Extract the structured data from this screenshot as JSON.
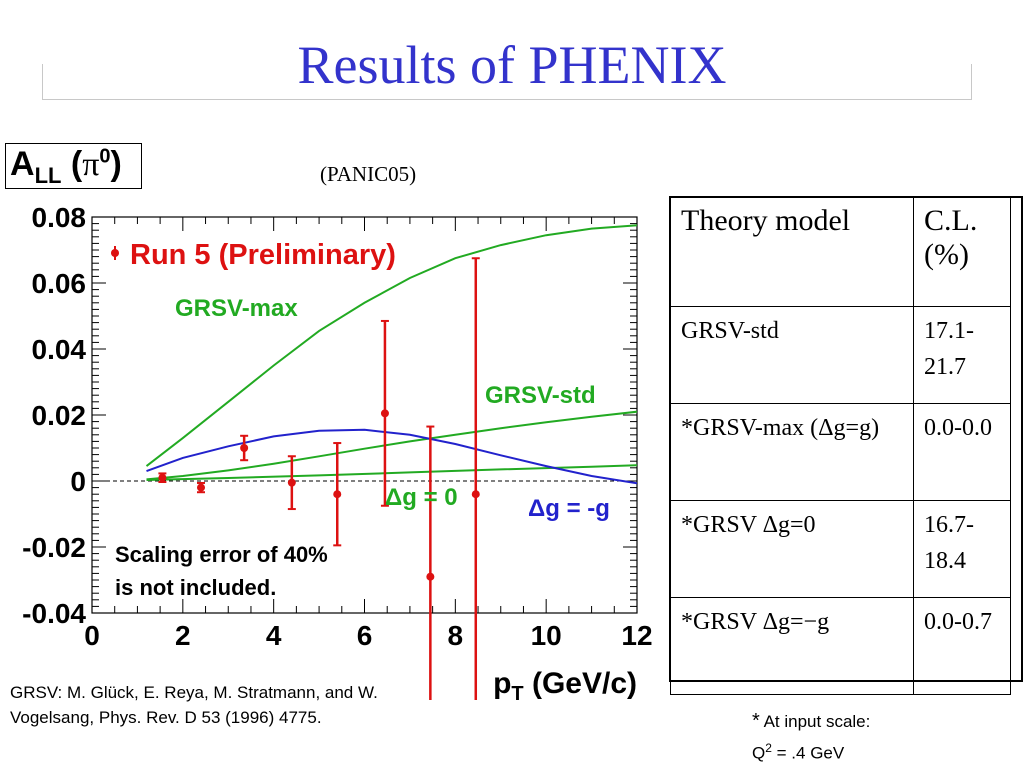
{
  "slide": {
    "title": "Results of PHENIX",
    "source": "(PANIC05)",
    "all_label": {
      "main": "A",
      "sub": "LL",
      "paren_open": " (",
      "pi": "π",
      "sup": "0",
      "paren_close": ")"
    },
    "reference": "GRSV:  M. Glück, E. Reya, M. Stratmann, and W. Vogelsang, Phys. Rev. D 53 (1996) 4775.",
    "footnote": {
      "star": "*",
      "line1": " At input scale:",
      "q": "Q",
      "q_sup": "2",
      "line2": " = .4 GeV"
    }
  },
  "table": {
    "headers": [
      "Theory model",
      "C.L. (%)"
    ],
    "rows": [
      {
        "model": "GRSV-std",
        "cl": "17.1-21.7"
      },
      {
        "model": "*GRSV-max (Δg=g)",
        "cl": "0.0-0.0"
      },
      {
        "model": "*GRSV Δg=0",
        "cl": "16.7-18.4"
      },
      {
        "model": "*GRSV Δg=−g",
        "cl": "0.0-0.7"
      }
    ]
  },
  "chart_data": {
    "type": "scatter",
    "xlabel": "p",
    "xlabel_sub": "T",
    "xlabel_unit": " (GeV/c)",
    "xlim": [
      0,
      12
    ],
    "ylim": [
      -0.04,
      0.08
    ],
    "x_ticks": [
      "0",
      "2",
      "4",
      "6",
      "8",
      "10",
      "12"
    ],
    "y_ticks": [
      "-0.04",
      "-0.02",
      "0",
      "0.02",
      "0.04",
      "0.06",
      "0.08"
    ],
    "x_tick_values": [
      0,
      2,
      4,
      6,
      8,
      10,
      12
    ],
    "y_tick_values": [
      -0.04,
      -0.02,
      0,
      0.02,
      0.04,
      0.06,
      0.08
    ],
    "legend": "Run 5 (Preliminary)",
    "annotations": {
      "grsv_max": "GRSV-max",
      "grsv_std": "GRSV-std",
      "dg0": "Δg = 0",
      "dgneg": "Δg = -g",
      "note_line1": "Scaling error of 40%",
      "note_line2": "is not included."
    },
    "colors": {
      "data": "#dd1111",
      "green": "#22aa22",
      "blue": "#2222cc",
      "axis": "#000000"
    },
    "points": [
      {
        "x": 1.55,
        "y": 0.001,
        "err": 0.0013
      },
      {
        "x": 2.4,
        "y": -0.002,
        "err": 0.0014
      },
      {
        "x": 3.35,
        "y": 0.01,
        "err": 0.0037
      },
      {
        "x": 4.4,
        "y": -0.0005,
        "err": 0.008
      },
      {
        "x": 5.4,
        "y": -0.004,
        "err": 0.0155
      },
      {
        "x": 6.45,
        "y": 0.0205,
        "err": 0.028
      },
      {
        "x": 7.45,
        "y": -0.029,
        "err": 0.0455
      },
      {
        "x": 8.45,
        "y": -0.004,
        "err": 0.0715
      }
    ],
    "curves": [
      {
        "name": "GRSV-max",
        "color": "green",
        "x": [
          1.2,
          2,
          3,
          4,
          5,
          6,
          7,
          8,
          9,
          10,
          11,
          12
        ],
        "y": [
          0.0045,
          0.013,
          0.024,
          0.035,
          0.0455,
          0.054,
          0.0615,
          0.0675,
          0.0715,
          0.0745,
          0.0765,
          0.0775
        ]
      },
      {
        "name": "GRSV-std",
        "color": "green",
        "x": [
          1.2,
          2,
          3,
          4,
          5,
          6,
          7,
          8,
          9,
          10,
          11,
          12
        ],
        "y": [
          0.0005,
          0.0015,
          0.0032,
          0.0052,
          0.0075,
          0.0098,
          0.012,
          0.014,
          0.016,
          0.0178,
          0.0195,
          0.021
        ]
      },
      {
        "name": "Δg = 0",
        "color": "green",
        "x": [
          1.2,
          3,
          5,
          7,
          9,
          11,
          12
        ],
        "y": [
          0.0003,
          0.0009,
          0.0017,
          0.0026,
          0.0035,
          0.0043,
          0.0048
        ]
      },
      {
        "name": "Δg = -g",
        "color": "blue",
        "x": [
          1.2,
          2,
          3,
          4,
          5,
          6,
          7,
          8,
          9,
          10,
          11,
          12
        ],
        "y": [
          0.003,
          0.007,
          0.0105,
          0.0135,
          0.0152,
          0.0155,
          0.014,
          0.0112,
          0.0078,
          0.0045,
          0.0015,
          -0.0007
        ]
      }
    ]
  }
}
